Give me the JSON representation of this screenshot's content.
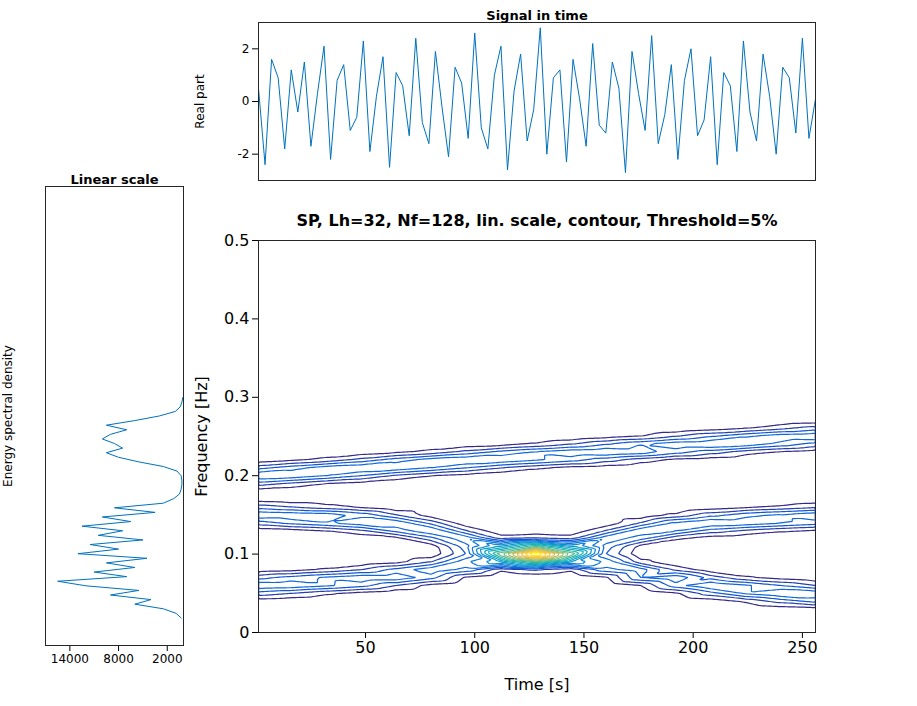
{
  "chart_data": [
    {
      "type": "line",
      "title": "Signal in time",
      "ylabel": "Real part",
      "color": "#0072bd",
      "x": [
        1,
        4,
        7,
        10,
        13,
        16,
        19,
        22,
        25,
        28,
        31,
        34,
        37,
        40,
        43,
        46,
        49,
        52,
        55,
        58,
        61,
        64,
        67,
        70,
        73,
        76,
        79,
        82,
        85,
        88,
        91,
        94,
        97,
        100,
        103,
        106,
        109,
        112,
        115,
        118,
        121,
        124,
        127,
        130,
        133,
        136,
        139,
        142,
        145,
        148,
        151,
        154,
        157,
        160,
        163,
        166,
        169,
        172,
        175,
        178,
        181,
        184,
        187,
        190,
        193,
        196,
        199,
        202,
        205,
        208,
        211,
        214,
        217,
        220,
        223,
        226,
        229,
        232,
        235,
        238,
        241,
        244,
        247,
        250,
        253,
        256
      ],
      "values": [
        0.5,
        -2.4,
        1.6,
        0.9,
        -1.8,
        1.2,
        -0.4,
        1.5,
        -1.7,
        0.3,
        2.1,
        -2.2,
        0.8,
        1.4,
        -1.1,
        -0.6,
        2.3,
        -1.9,
        0.2,
        1.7,
        -2.5,
        1.1,
        0.6,
        -1.3,
        2.4,
        -0.8,
        -1.6,
        1.9,
        -0.2,
        -2.1,
        1.3,
        0.7,
        -1.4,
        2.6,
        -1.0,
        -1.8,
        1.0,
        2.1,
        -2.6,
        0.4,
        1.8,
        -1.5,
        -0.3,
        2.8,
        -2.0,
        0.9,
        1.2,
        -2.3,
        1.6,
        0.1,
        -1.7,
        2.2,
        -0.9,
        -1.2,
        1.5,
        0.5,
        -2.7,
        1.9,
        0.3,
        -1.1,
        2.5,
        -1.6,
        -0.5,
        1.4,
        -2.2,
        0.8,
        2.0,
        -1.3,
        -0.7,
        1.7,
        -2.4,
        1.1,
        0.6,
        -1.9,
        2.3,
        -0.4,
        -1.5,
        1.8,
        0.2,
        -2.0,
        1.3,
        0.9,
        -1.2,
        2.4,
        -1.4,
        0.1
      ],
      "xlim": [
        1,
        256
      ],
      "ylim": [
        -3,
        3
      ],
      "yticks": [
        -2,
        0,
        2
      ],
      "tick_labels": "y"
    },
    {
      "type": "line",
      "orientation": "horizontal",
      "title": "Linear scale",
      "ylabel": "Energy spectral density",
      "color": "#0072bd",
      "y": [
        0.03,
        0.035,
        0.04,
        0.045,
        0.05,
        0.055,
        0.06,
        0.065,
        0.07,
        0.075,
        0.08,
        0.085,
        0.09,
        0.095,
        0.1,
        0.105,
        0.11,
        0.115,
        0.12,
        0.125,
        0.13,
        0.135,
        0.14,
        0.145,
        0.15,
        0.155,
        0.16,
        0.165,
        0.17,
        0.175,
        0.18,
        0.185,
        0.19,
        0.195,
        0.2,
        0.205,
        0.21,
        0.215,
        0.22,
        0.225,
        0.23,
        0.235,
        0.24,
        0.245,
        0.25,
        0.255,
        0.26,
        0.265,
        0.27
      ],
      "values": [
        300,
        900,
        2500,
        6000,
        4000,
        9000,
        5500,
        12000,
        15500,
        7000,
        11000,
        6000,
        9500,
        4500,
        13000,
        8000,
        11500,
        5000,
        10500,
        7500,
        12500,
        6500,
        10000,
        3500,
        8500,
        2500,
        1200,
        500,
        300,
        200,
        200,
        300,
        800,
        2500,
        5500,
        8000,
        9500,
        7500,
        8500,
        10000,
        9000,
        7000,
        9500,
        6000,
        3000,
        1000,
        400,
        200,
        100
      ],
      "xlim": [
        17000,
        0
      ],
      "xticks": [
        14000,
        8000,
        2000
      ],
      "ylim": [
        0,
        0.5
      ],
      "tick_labels": "x"
    },
    {
      "type": "contour",
      "title": "SP, Lh=32, Nf=128, lin. scale, contour, Threshold=5%",
      "xlabel": "Time [s]",
      "ylabel": "Frequency [Hz]",
      "xlim": [
        1,
        256
      ],
      "xticks": [
        50,
        100,
        150,
        200,
        250
      ],
      "ylim": [
        0,
        0.5
      ],
      "yticks": [
        0,
        0.1,
        0.2,
        0.3,
        0.4,
        0.5
      ],
      "cells": {
        "x": [
          0,
          16,
          32,
          48,
          64,
          80,
          96,
          112,
          128,
          144,
          160,
          176,
          192,
          208,
          224,
          240,
          256
        ],
        "y": [
          0.03,
          0.04,
          0.05,
          0.06,
          0.07,
          0.08,
          0.09,
          0.1,
          0.11,
          0.12,
          0.13,
          0.14,
          0.15,
          0.16,
          0.17,
          0.18,
          0.19,
          0.2,
          0.21,
          0.22,
          0.23,
          0.24,
          0.25,
          0.26,
          0.27,
          0.28
        ],
        "values": [
          [
            0,
            0.2,
            1.3,
            2.5,
            1.3,
            0.2,
            0,
            0,
            0,
            0,
            0.2,
            1.3,
            2.5,
            1.3,
            0.2,
            0.2,
            1.3,
            2.5,
            1.3,
            0.2,
            0,
            0,
            0,
            0,
            0,
            0
          ],
          [
            0,
            0.1,
            1.0,
            2.4,
            1.7,
            0.3,
            0,
            0,
            0,
            0,
            0.3,
            1.7,
            2.4,
            1.0,
            0.1,
            0.1,
            0.9,
            2.4,
            1.8,
            0.4,
            0,
            0,
            0,
            0,
            0,
            0
          ],
          [
            0,
            0,
            0.6,
            2.1,
            2.1,
            0.6,
            0,
            0,
            0,
            0,
            0.5,
            2.0,
            2.3,
            0.7,
            0.1,
            0,
            0.5,
            2.0,
            2.3,
            0.7,
            0.1,
            0,
            0,
            0,
            0,
            0
          ],
          [
            0,
            0,
            0.3,
            1.7,
            2.4,
            1.0,
            0.1,
            0,
            0,
            0.1,
            0.9,
            2.4,
            1.8,
            0.4,
            0,
            0,
            0.3,
            1.5,
            2.5,
            1.2,
            0.2,
            0,
            0,
            0,
            0,
            0
          ],
          [
            0,
            0,
            0.1,
            1.0,
            2.4,
            1.7,
            0.3,
            0,
            0,
            0.3,
            1.7,
            2.4,
            1.0,
            0.1,
            0,
            0,
            0.1,
            0.9,
            2.4,
            1.8,
            0.4,
            0,
            0,
            0,
            0,
            0
          ],
          [
            0,
            0,
            0,
            0.3,
            1.7,
            2.4,
            1.0,
            0.1,
            0.2,
            1.3,
            2.5,
            1.3,
            0.2,
            0,
            0,
            0,
            0,
            0.5,
            2.0,
            2.3,
            0.7,
            0.1,
            0,
            0,
            0,
            0
          ],
          [
            0,
            0,
            0,
            0,
            0.4,
            1.8,
            2.4,
            1.5,
            1.8,
            2.4,
            1.0,
            0.1,
            0,
            0,
            0,
            0,
            0,
            0.3,
            1.5,
            2.5,
            1.2,
            0.2,
            0,
            0,
            0,
            0
          ],
          [
            0,
            0,
            0,
            0,
            0,
            0.6,
            3.5,
            6.0,
            3.5,
            0.8,
            0.1,
            0,
            0,
            0,
            0,
            0,
            0,
            0.1,
            1.0,
            2.4,
            1.7,
            0.3,
            0,
            0,
            0,
            0
          ],
          [
            0,
            0,
            0,
            0,
            0.1,
            1.0,
            5.4,
            10,
            5.4,
            1.0,
            0.1,
            0,
            0,
            0,
            0,
            0,
            0,
            0,
            0.6,
            2.1,
            2.1,
            0.6,
            0,
            0,
            0,
            0
          ],
          [
            0,
            0,
            0,
            0,
            0,
            0.6,
            3.5,
            6.0,
            3.5,
            0.8,
            0.1,
            0,
            0,
            0,
            0,
            0,
            0,
            0,
            0.3,
            1.7,
            2.4,
            1.0,
            0.1,
            0,
            0,
            0
          ],
          [
            0,
            0,
            0,
            0,
            0.4,
            1.8,
            2.4,
            1.5,
            1.8,
            2.4,
            1.0,
            0.1,
            0,
            0,
            0,
            0,
            0,
            0,
            0.2,
            1.2,
            2.5,
            1.5,
            0.3,
            0,
            0,
            0
          ],
          [
            0,
            0,
            0,
            0.5,
            2.0,
            2.3,
            0.7,
            0.1,
            0.3,
            1.7,
            2.4,
            1.0,
            0.1,
            0,
            0,
            0,
            0,
            0,
            0.1,
            0.7,
            2.3,
            2.0,
            0.5,
            0,
            0,
            0
          ],
          [
            0,
            0,
            0.4,
            1.8,
            2.4,
            0.9,
            0.1,
            0,
            0,
            0.6,
            2.1,
            2.1,
            0.6,
            0,
            0,
            0,
            0,
            0,
            0,
            0.3,
            1.7,
            2.4,
            1.0,
            0.1,
            0,
            0
          ],
          [
            0,
            0.2,
            1.3,
            2.5,
            1.3,
            0.2,
            0,
            0,
            0,
            0.2,
            1.3,
            2.5,
            1.3,
            0.2,
            0,
            0,
            0,
            0,
            0,
            0.2,
            1.2,
            2.5,
            1.5,
            0.3,
            0,
            0
          ],
          [
            0,
            0.6,
            2.1,
            2.1,
            0.6,
            0,
            0,
            0,
            0,
            0.1,
            0.9,
            2.4,
            1.8,
            0.4,
            0,
            0,
            0,
            0,
            0,
            0.1,
            0.7,
            2.3,
            2.0,
            0.5,
            0,
            0
          ],
          [
            0.2,
            1.2,
            2.5,
            1.5,
            0.3,
            0,
            0,
            0,
            0,
            0,
            0.6,
            2.1,
            2.1,
            0.6,
            0,
            0,
            0,
            0,
            0,
            0,
            0.4,
            1.8,
            2.4,
            0.9,
            0.1,
            0
          ],
          [
            0.3,
            1.7,
            2.4,
            1.0,
            0.1,
            0,
            0,
            0,
            0,
            0,
            0.4,
            1.8,
            2.4,
            0.9,
            0.1,
            0,
            0,
            0,
            0,
            0,
            0.2,
            1.3,
            2.5,
            1.3,
            0.2,
            0
          ]
        ]
      }
    }
  ]
}
